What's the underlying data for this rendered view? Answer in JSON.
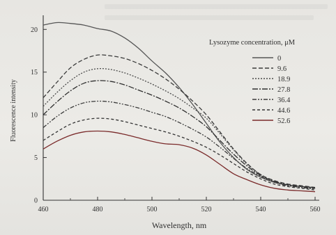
{
  "chart_data": {
    "type": "line",
    "title": "",
    "xlabel": "Wavelength, nm",
    "ylabel": "Fluorescence intensity",
    "xlim": [
      460,
      560
    ],
    "ylim": [
      0,
      21
    ],
    "xticks": [
      460,
      480,
      500,
      520,
      540,
      560
    ],
    "yticks": [
      0,
      5,
      10,
      15,
      20
    ],
    "xtick_labels": [
      "460",
      "480",
      "500",
      "520",
      "540",
      "560"
    ],
    "ytick_labels": [
      "0",
      "5",
      "10",
      "15",
      "20"
    ],
    "grid": false,
    "legend_title": "Lysozyme concentration, μM",
    "legend_position": "top-right",
    "x": [
      460,
      465,
      470,
      475,
      480,
      485,
      490,
      495,
      500,
      505,
      510,
      515,
      520,
      525,
      530,
      535,
      540,
      545,
      550,
      555,
      560
    ],
    "series": [
      {
        "name": "0",
        "color": "#555555",
        "dash": "",
        "values": [
          20.5,
          20.8,
          20.7,
          20.5,
          20.1,
          19.8,
          19.0,
          17.8,
          16.3,
          14.9,
          13.2,
          11.2,
          9.0,
          6.8,
          5.0,
          3.6,
          2.7,
          2.1,
          1.8,
          1.6,
          1.5
        ]
      },
      {
        "name": "9.6",
        "color": "#3a3a3a",
        "dash": "6,3",
        "values": [
          12.0,
          13.8,
          15.5,
          16.5,
          17.0,
          16.9,
          16.6,
          16.0,
          15.2,
          14.2,
          13.0,
          11.6,
          10.0,
          8.0,
          6.0,
          4.3,
          3.0,
          2.3,
          1.9,
          1.7,
          1.5
        ]
      },
      {
        "name": "18.9",
        "color": "#4a4a4a",
        "dash": "2,2",
        "values": [
          11.0,
          12.6,
          14.0,
          15.0,
          15.4,
          15.3,
          14.9,
          14.3,
          13.6,
          12.8,
          11.9,
          10.8,
          9.6,
          7.8,
          5.9,
          4.2,
          3.0,
          2.2,
          1.8,
          1.6,
          1.4
        ]
      },
      {
        "name": "27.8",
        "color": "#2e2e2e",
        "dash": "8,2,2,2",
        "values": [
          10.0,
          11.5,
          12.8,
          13.7,
          14.0,
          13.9,
          13.5,
          12.9,
          12.3,
          11.6,
          10.8,
          9.8,
          8.6,
          7.0,
          5.4,
          4.0,
          2.9,
          2.2,
          1.8,
          1.6,
          1.4
        ]
      },
      {
        "name": "36.4",
        "color": "#3c3c3c",
        "dash": "6,2,2,2,2,2",
        "values": [
          8.5,
          9.8,
          10.8,
          11.4,
          11.6,
          11.5,
          11.2,
          10.8,
          10.3,
          9.8,
          9.1,
          8.3,
          7.4,
          6.2,
          4.9,
          3.7,
          2.8,
          2.1,
          1.7,
          1.5,
          1.3
        ]
      },
      {
        "name": "44.6",
        "color": "#333333",
        "dash": "4,3",
        "values": [
          7.0,
          8.0,
          8.9,
          9.4,
          9.6,
          9.5,
          9.2,
          8.8,
          8.4,
          8.0,
          7.5,
          6.9,
          6.2,
          5.3,
          4.3,
          3.3,
          2.5,
          1.9,
          1.6,
          1.4,
          1.2
        ]
      },
      {
        "name": "52.6",
        "color": "#7a2a2a",
        "dash": "",
        "values": [
          6.0,
          6.9,
          7.6,
          8.0,
          8.1,
          8.0,
          7.7,
          7.3,
          6.9,
          6.6,
          6.5,
          6.1,
          5.3,
          4.2,
          3.1,
          2.4,
          1.8,
          1.4,
          1.2,
          1.1,
          1.0
        ]
      }
    ]
  }
}
